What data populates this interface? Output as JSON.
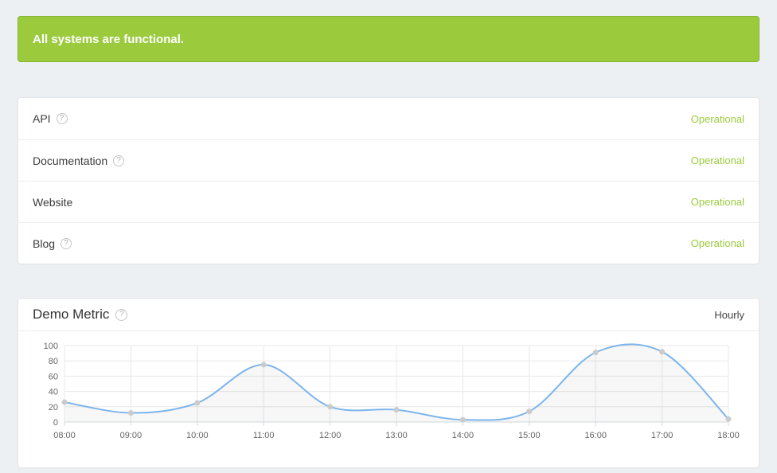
{
  "banner": {
    "message": "All systems are functional.",
    "bg_color": "#9bcb3d",
    "border_color": "#86b430",
    "text_color": "#ffffff"
  },
  "services": [
    {
      "name": "API",
      "help": true,
      "status": "Operational"
    },
    {
      "name": "Documentation",
      "help": true,
      "status": "Operational"
    },
    {
      "name": "Website",
      "help": false,
      "status": "Operational"
    },
    {
      "name": "Blog",
      "help": true,
      "status": "Operational"
    }
  ],
  "metric": {
    "title": "Demo Metric",
    "help": true,
    "period": "Hourly"
  },
  "icons": {
    "help": "?"
  },
  "colors": {
    "operational": "#9bcb3d",
    "line": "#7cb5ec",
    "marker": "#cbcbcb",
    "grid": "#e8e8e8",
    "axis": "#d3d9de",
    "area_fill": "rgba(120,120,120,0.06)"
  },
  "chart_data": {
    "type": "line",
    "title": "Demo Metric",
    "x": [
      "08:00",
      "09:00",
      "10:00",
      "11:00",
      "12:00",
      "13:00",
      "14:00",
      "15:00",
      "16:00",
      "17:00",
      "18:00"
    ],
    "values": [
      26,
      12,
      25,
      75,
      20,
      16,
      3,
      14,
      91,
      92,
      4
    ],
    "xlabel": "",
    "ylabel": "",
    "ylim": [
      0,
      100
    ],
    "yticks": [
      0,
      20,
      40,
      60,
      80,
      100
    ],
    "grid": true,
    "legend": false,
    "smooth": true,
    "area_fill": true,
    "markers": true
  }
}
